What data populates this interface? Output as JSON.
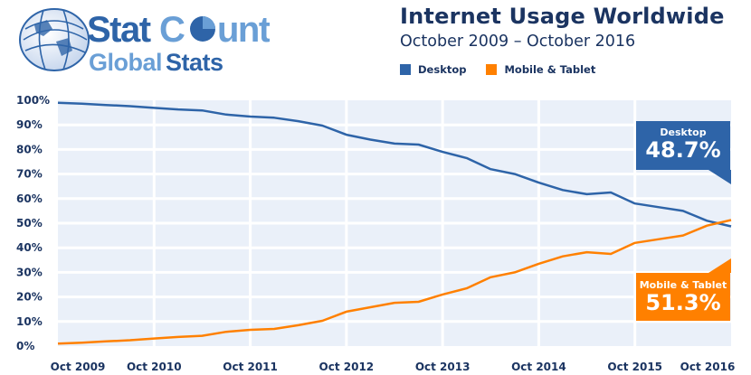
{
  "logo": {
    "line1_a": "Stat",
    "line1_b": "Counter",
    "line2_a": "Global",
    "line2_b": "Stats"
  },
  "header": {
    "title": "Internet Usage Worldwide",
    "subtitle": "October 2009 – October 2016"
  },
  "legend": [
    {
      "label": "Desktop",
      "color": "#2e64a8"
    },
    {
      "label": "Mobile & Tablet",
      "color": "#ff8000"
    }
  ],
  "callouts": {
    "desktop": {
      "label": "Desktop",
      "value": "48.7%"
    },
    "mobile": {
      "label": "Mobile & Tablet",
      "value": "51.3%"
    }
  },
  "chart_data": {
    "type": "line",
    "title": "Internet Usage Worldwide",
    "subtitle": "October 2009 – October 2016",
    "xlabel": "",
    "ylabel": "",
    "ylim": [
      0,
      100
    ],
    "yticks": [
      "0%",
      "10%",
      "20%",
      "30%",
      "40%",
      "50%",
      "60%",
      "70%",
      "80%",
      "90%",
      "100%"
    ],
    "xticks": [
      "Oct 2009",
      "Oct 2010",
      "Oct 2011",
      "Oct 2012",
      "Oct 2013",
      "Oct 2014",
      "Oct 2015",
      "Oct 2016"
    ],
    "grid": true,
    "legend_position": "top",
    "x": [
      "Oct 2009",
      "Jan 2010",
      "Apr 2010",
      "Jul 2010",
      "Oct 2010",
      "Jan 2011",
      "Apr 2011",
      "Jul 2011",
      "Oct 2011",
      "Jan 2012",
      "Apr 2012",
      "Jul 2012",
      "Oct 2012",
      "Jan 2013",
      "Apr 2013",
      "Jul 2013",
      "Oct 2013",
      "Jan 2014",
      "Apr 2014",
      "Jul 2014",
      "Oct 2014",
      "Jan 2015",
      "Apr 2015",
      "Jul 2015",
      "Oct 2015",
      "Jan 2016",
      "Apr 2016",
      "Jul 2016",
      "Oct 2016"
    ],
    "series": [
      {
        "name": "Desktop",
        "color": "#2e64a8",
        "values": [
          99.0,
          98.6,
          98.1,
          97.6,
          96.9,
          96.3,
          95.9,
          94.2,
          93.4,
          92.9,
          91.5,
          89.7,
          86.0,
          84.0,
          82.4,
          82.0,
          79.0,
          76.5,
          72.0,
          70.0,
          66.5,
          63.5,
          61.8,
          62.5,
          58.0,
          56.5,
          55.0,
          51.0,
          48.7
        ]
      },
      {
        "name": "Mobile & Tablet",
        "color": "#ff8000",
        "values": [
          1.0,
          1.4,
          1.9,
          2.4,
          3.1,
          3.7,
          4.2,
          5.8,
          6.6,
          7.0,
          8.5,
          10.3,
          14.0,
          15.8,
          17.6,
          18.0,
          21.0,
          23.5,
          28.0,
          30.0,
          33.5,
          36.5,
          38.2,
          37.5,
          42.0,
          43.5,
          45.0,
          49.0,
          51.3
        ]
      }
    ],
    "annotations": [
      {
        "series": "Desktop",
        "text": "48.7%"
      },
      {
        "series": "Mobile & Tablet",
        "text": "51.3%"
      }
    ]
  }
}
